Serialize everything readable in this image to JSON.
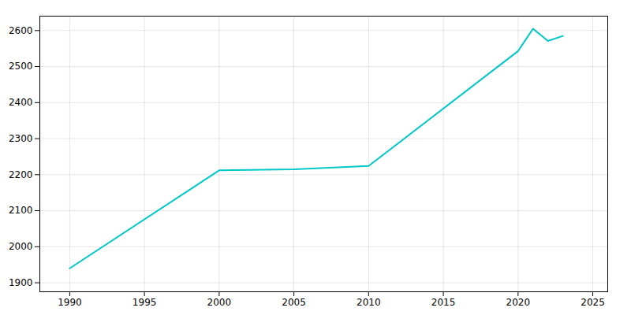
{
  "chart_data": {
    "type": "line",
    "x": [
      1990,
      2000,
      2005,
      2010,
      2020,
      2021,
      2022,
      2023
    ],
    "values": [
      1940,
      2212,
      2215,
      2224,
      2543,
      2605,
      2571,
      2585
    ],
    "color": "#00C8C8",
    "xlim": [
      1988,
      2026
    ],
    "ylim": [
      1875,
      2640
    ],
    "xticks": [
      1990,
      1995,
      2000,
      2005,
      2010,
      2015,
      2020,
      2025
    ],
    "yticks": [
      1900,
      2000,
      2100,
      2200,
      2300,
      2400,
      2500,
      2600
    ],
    "grid": true
  }
}
